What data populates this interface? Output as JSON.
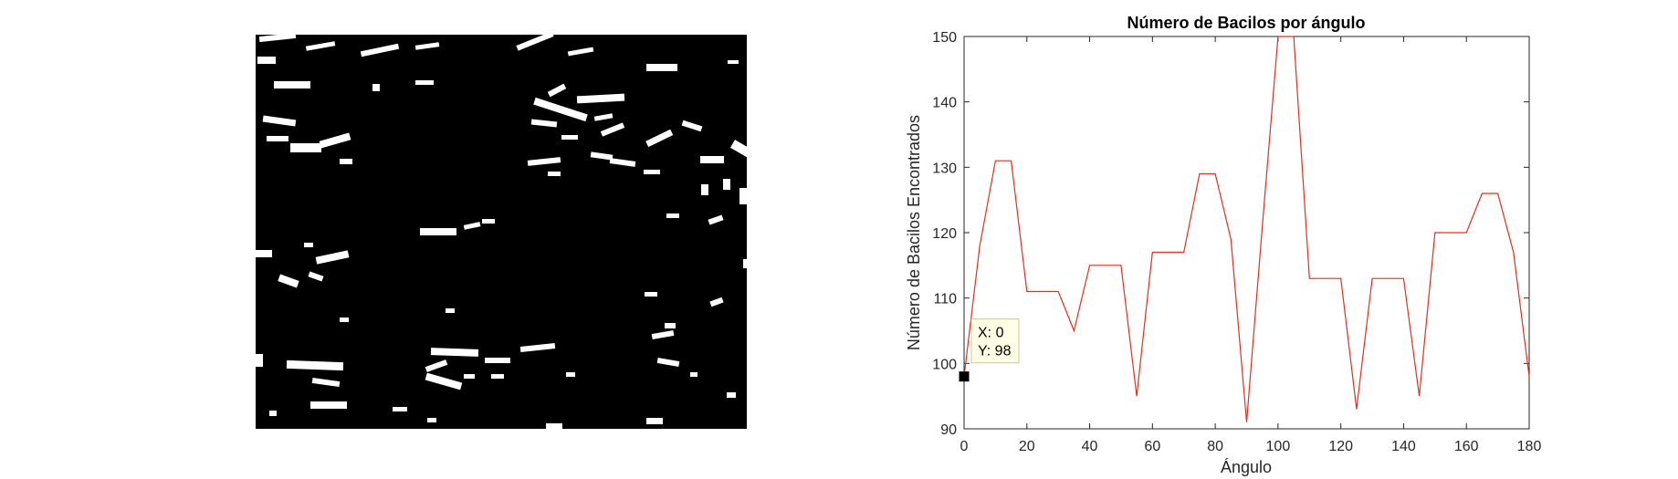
{
  "figure_panels": {
    "left_panel": "binary bacilli segmentation image",
    "right_panel": "line chart"
  },
  "chart_data": {
    "type": "line",
    "title": "Número de Bacilos por ángulo",
    "xlabel": "Ángulo",
    "ylabel": "Número de Bacilos Encontrados",
    "xlim": [
      0,
      180
    ],
    "ylim": [
      90,
      150
    ],
    "xticks": [
      0,
      20,
      40,
      60,
      80,
      100,
      120,
      140,
      160,
      180
    ],
    "yticks": [
      90,
      100,
      110,
      120,
      130,
      140,
      150
    ],
    "line_color": "#e0301e",
    "series": [
      {
        "x": [
          0,
          5,
          10,
          15,
          20,
          25,
          30,
          35,
          40,
          45,
          50,
          55,
          60,
          65,
          70,
          75,
          80,
          85,
          90,
          95,
          100,
          105,
          110,
          115,
          120,
          125,
          130,
          135,
          140,
          145,
          150,
          155,
          160,
          165,
          170,
          175,
          180
        ],
        "y": [
          98,
          118,
          131,
          131,
          111,
          111,
          111,
          105,
          115,
          115,
          115,
          95,
          117,
          117,
          117,
          129,
          129,
          119,
          91,
          121,
          151,
          151,
          113,
          113,
          113,
          93,
          113,
          113,
          113,
          95,
          120,
          120,
          120,
          126,
          126,
          117,
          98
        ]
      }
    ],
    "datatip": {
      "x_label": "X: 0",
      "y_label": "Y: 98",
      "x": 0,
      "y": 98
    },
    "grid": false,
    "box": true
  }
}
